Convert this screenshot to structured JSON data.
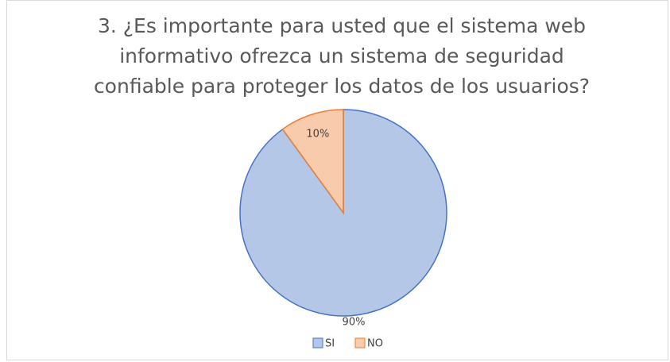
{
  "chart_data": {
    "type": "pie",
    "title": "3. ¿Es importante para usted que el sistema web informativo ofrezca un sistema de seguridad confiable para proteger los datos de los usuarios?",
    "categories": [
      "SI",
      "NO"
    ],
    "values": [
      90,
      10
    ],
    "value_labels": [
      "90%",
      "10%"
    ],
    "colors": [
      "#b4c7e7",
      "#f8cbad"
    ],
    "edge_colors": [
      "#4472c4",
      "#ed7d31"
    ],
    "legend": "bottom"
  }
}
